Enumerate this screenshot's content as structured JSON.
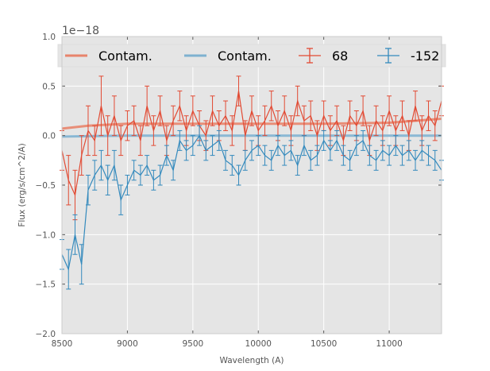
{
  "chart_data": {
    "type": "line",
    "title": "",
    "xlabel": "Wavelength (A)",
    "ylabel": "Flux (erg/s/cm^2/A)",
    "xlim": [
      8500,
      11400
    ],
    "ylim": [
      -2.0,
      1.0
    ],
    "y_offset_label": "1e−18",
    "x_ticks": [
      8500,
      9000,
      9500,
      10000,
      10500,
      11000
    ],
    "x_tick_labels": [
      "8500",
      "9000",
      "9500",
      "10000",
      "10500",
      "11000"
    ],
    "y_ticks": [
      -2.0,
      -1.5,
      -1.0,
      -0.5,
      0.0,
      0.5,
      1.0
    ],
    "y_tick_labels": [
      "−2.0",
      "−1.5",
      "−1.0",
      "−0.5",
      "0.0",
      "0.5",
      "1.0"
    ],
    "grid": true,
    "legend_placement": "top",
    "background_color": "#e5e5e5",
    "series": [
      {
        "name": "Contam.",
        "kind": "line",
        "color": "#e8846c",
        "x": [
          8500,
          8700,
          9000,
          9500,
          10000,
          10500,
          11000,
          11400
        ],
        "values": [
          0.07,
          0.1,
          0.12,
          0.12,
          0.12,
          0.12,
          0.13,
          0.17
        ]
      },
      {
        "name": "Contam.",
        "kind": "line",
        "color": "#7eb1d0",
        "x": [
          8500,
          9000,
          9500,
          10000,
          10500,
          11000,
          11400
        ],
        "values": [
          -0.01,
          0.0,
          0.0,
          0.0,
          0.0,
          0.0,
          0.0
        ]
      },
      {
        "name": "68",
        "kind": "errorbar",
        "color": "#e24a33",
        "x": [
          8500,
          8550,
          8600,
          8650,
          8700,
          8750,
          8800,
          8850,
          8900,
          8950,
          9000,
          9050,
          9100,
          9150,
          9200,
          9250,
          9300,
          9350,
          9400,
          9450,
          9500,
          9550,
          9600,
          9650,
          9700,
          9750,
          9800,
          9850,
          9900,
          9950,
          10000,
          10050,
          10100,
          10150,
          10200,
          10250,
          10300,
          10350,
          10400,
          10450,
          10500,
          10550,
          10600,
          10650,
          10700,
          10750,
          10800,
          10850,
          10900,
          10950,
          11000,
          11050,
          11100,
          11150,
          11200,
          11250,
          11300,
          11350,
          11400
        ],
        "values": [
          -0.15,
          -0.45,
          -0.6,
          -0.2,
          0.05,
          -0.05,
          0.3,
          0.0,
          0.2,
          -0.05,
          0.1,
          0.15,
          -0.05,
          0.3,
          0.05,
          0.25,
          -0.05,
          0.15,
          0.3,
          0.05,
          0.25,
          0.1,
          0.0,
          0.25,
          0.1,
          0.2,
          0.05,
          0.45,
          0.0,
          0.25,
          0.05,
          0.15,
          0.3,
          0.1,
          0.25,
          0.05,
          0.35,
          0.15,
          0.2,
          0.0,
          0.2,
          0.05,
          0.15,
          -0.05,
          0.2,
          0.1,
          0.25,
          -0.05,
          0.15,
          0.05,
          0.25,
          0.05,
          0.2,
          0.0,
          0.3,
          0.05,
          0.2,
          0.1,
          0.35
        ],
        "err": [
          0.2,
          0.25,
          0.25,
          0.2,
          0.25,
          0.15,
          0.3,
          0.2,
          0.2,
          0.15,
          0.15,
          0.15,
          0.15,
          0.2,
          0.15,
          0.15,
          0.15,
          0.15,
          0.15,
          0.15,
          0.15,
          0.15,
          0.15,
          0.15,
          0.15,
          0.15,
          0.15,
          0.15,
          0.15,
          0.15,
          0.15,
          0.15,
          0.15,
          0.15,
          0.15,
          0.15,
          0.15,
          0.15,
          0.15,
          0.15,
          0.15,
          0.15,
          0.15,
          0.15,
          0.15,
          0.15,
          0.15,
          0.15,
          0.15,
          0.15,
          0.15,
          0.15,
          0.15,
          0.15,
          0.15,
          0.15,
          0.15,
          0.15,
          0.15
        ]
      },
      {
        "name": "-152",
        "kind": "errorbar",
        "color": "#348abd",
        "x": [
          8500,
          8550,
          8600,
          8650,
          8700,
          8750,
          8800,
          8850,
          8900,
          8950,
          9000,
          9050,
          9100,
          9150,
          9200,
          9250,
          9300,
          9350,
          9400,
          9450,
          9500,
          9550,
          9600,
          9650,
          9700,
          9750,
          9800,
          9850,
          9900,
          9950,
          10000,
          10050,
          10100,
          10150,
          10200,
          10250,
          10300,
          10350,
          10400,
          10450,
          10500,
          10550,
          10600,
          10650,
          10700,
          10750,
          10800,
          10850,
          10900,
          10950,
          11000,
          11050,
          11100,
          11150,
          11200,
          11250,
          11300,
          11350,
          11400
        ],
        "values": [
          -1.2,
          -1.35,
          -1.0,
          -1.3,
          -0.55,
          -0.4,
          -0.3,
          -0.45,
          -0.3,
          -0.65,
          -0.5,
          -0.35,
          -0.4,
          -0.3,
          -0.45,
          -0.4,
          -0.2,
          -0.35,
          -0.05,
          -0.15,
          -0.1,
          0.0,
          -0.15,
          -0.1,
          -0.05,
          -0.25,
          -0.3,
          -0.4,
          -0.25,
          -0.15,
          -0.1,
          -0.2,
          -0.25,
          -0.1,
          -0.2,
          -0.15,
          -0.3,
          -0.1,
          -0.25,
          -0.2,
          -0.05,
          -0.15,
          -0.05,
          -0.2,
          -0.25,
          -0.1,
          -0.05,
          -0.2,
          -0.25,
          -0.15,
          -0.2,
          -0.1,
          -0.2,
          -0.15,
          -0.25,
          -0.15,
          -0.2,
          -0.25,
          -0.35
        ],
        "err": [
          0.15,
          0.2,
          0.2,
          0.2,
          0.15,
          0.15,
          0.15,
          0.15,
          0.15,
          0.15,
          0.1,
          0.1,
          0.1,
          0.1,
          0.1,
          0.1,
          0.1,
          0.1,
          0.1,
          0.1,
          0.1,
          0.1,
          0.1,
          0.1,
          0.1,
          0.1,
          0.1,
          0.1,
          0.1,
          0.1,
          0.1,
          0.1,
          0.1,
          0.1,
          0.1,
          0.1,
          0.1,
          0.1,
          0.1,
          0.1,
          0.1,
          0.1,
          0.1,
          0.1,
          0.1,
          0.1,
          0.1,
          0.1,
          0.1,
          0.1,
          0.1,
          0.1,
          0.1,
          0.1,
          0.1,
          0.1,
          0.1,
          0.1,
          0.1
        ]
      }
    ]
  }
}
